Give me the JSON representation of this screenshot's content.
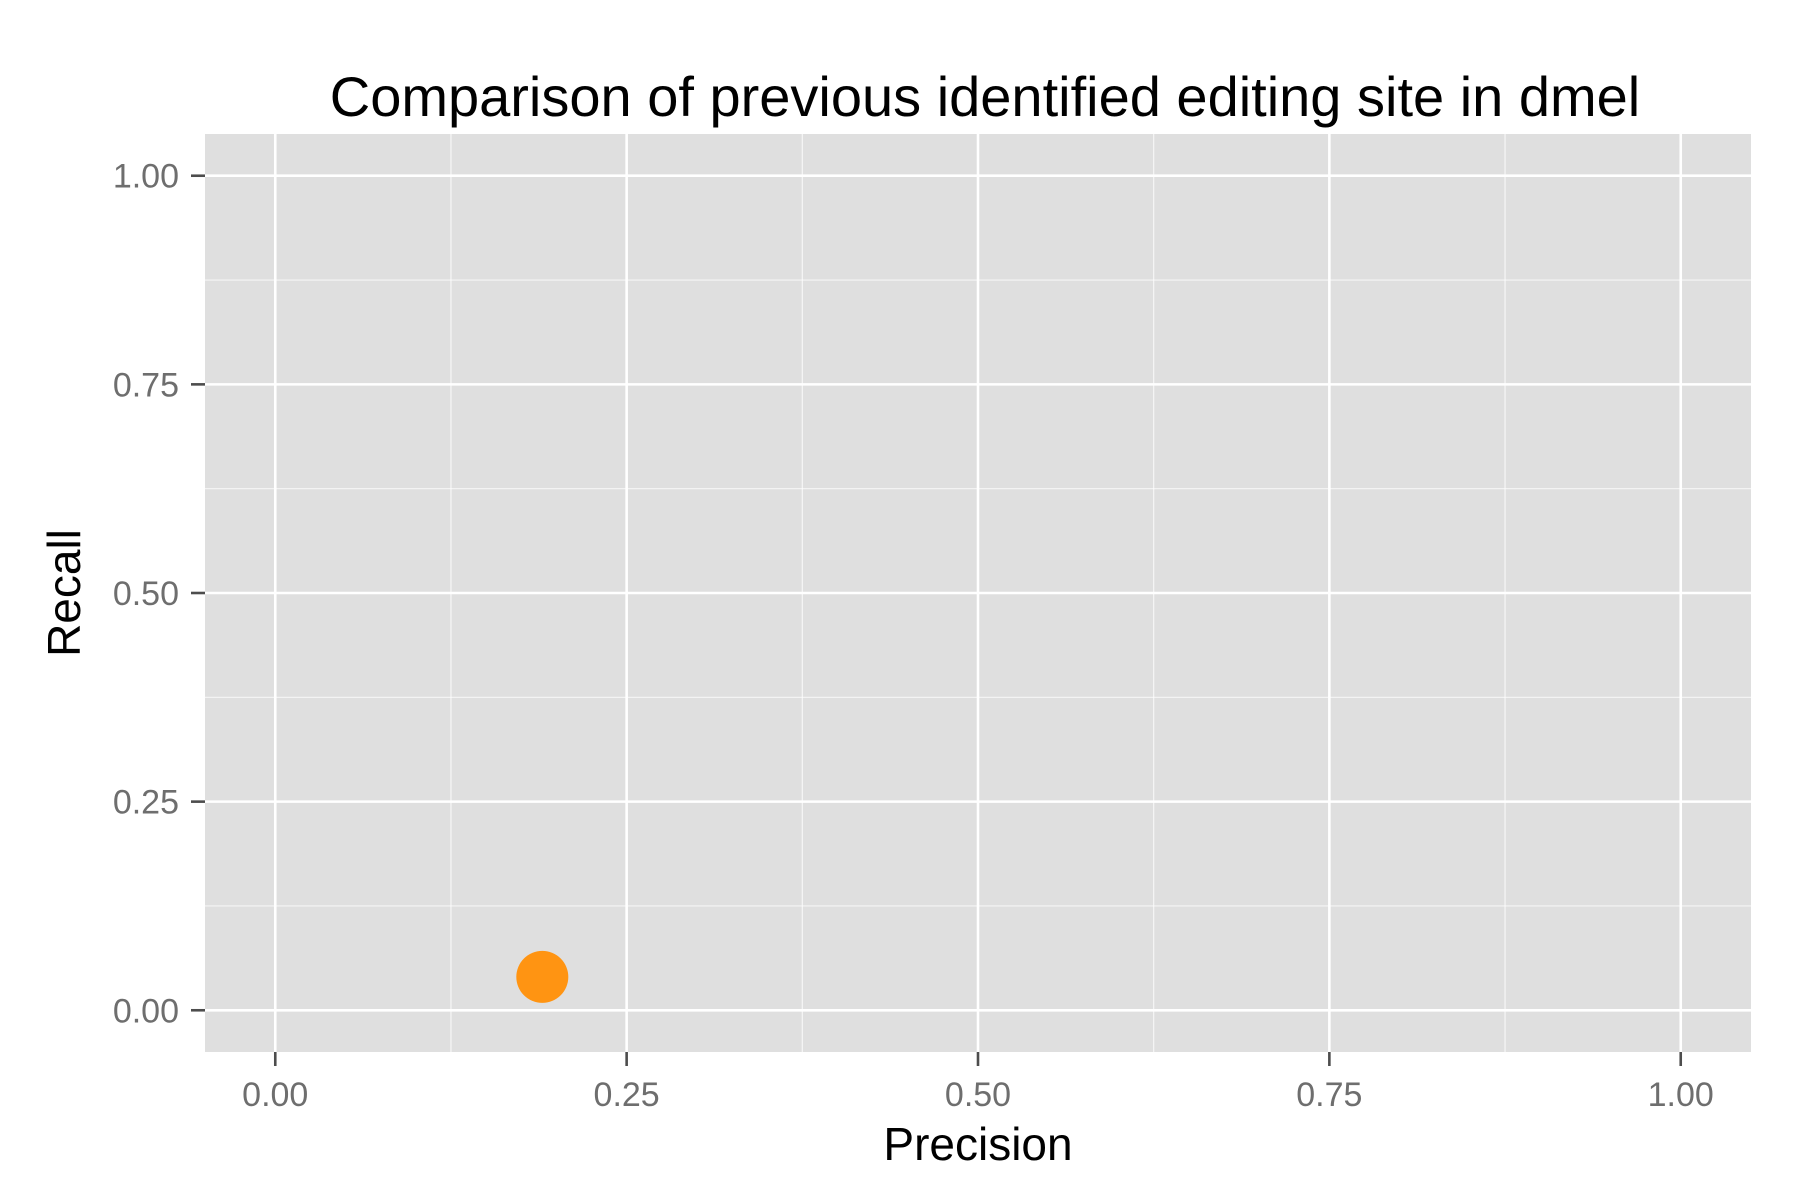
{
  "chart_data": {
    "type": "scatter",
    "title": "Comparison of previous identified editing site in dmel",
    "xlabel": "Precision",
    "ylabel": "Recall",
    "xlim": [
      -0.05,
      1.05
    ],
    "ylim": [
      -0.05,
      1.05
    ],
    "x_ticks": [
      0,
      0.25,
      0.5,
      0.75,
      1
    ],
    "y_ticks": [
      0,
      0.25,
      0.5,
      0.75,
      1
    ],
    "x_tick_labels": [
      "0.00",
      "0.25",
      "0.50",
      "0.75",
      "1.00"
    ],
    "y_tick_labels": [
      "0.00",
      "0.25",
      "0.50",
      "0.75",
      "1.00"
    ],
    "grid": true,
    "legend": "none",
    "colors": {
      "panel": "#dfdfdf",
      "grid": "#ffffff",
      "point": "#ff9412",
      "tick_text": "#6e6e6e"
    },
    "points": [
      {
        "x": 0.19,
        "y": 0.04
      }
    ]
  }
}
